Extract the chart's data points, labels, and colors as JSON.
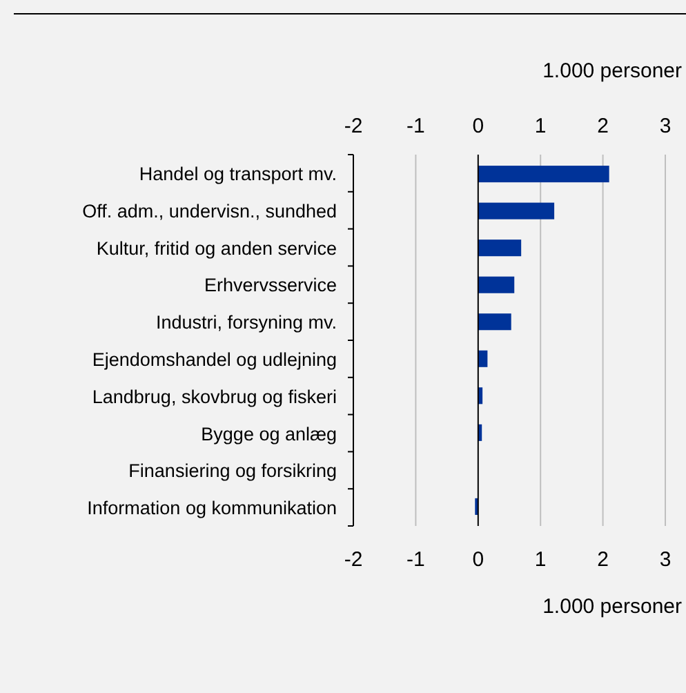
{
  "chart_data": {
    "type": "bar",
    "orientation": "horizontal",
    "categories": [
      "Handel og transport mv.",
      "Off. adm., undervisn., sundhed",
      "Kultur, fritid og anden service",
      "Erhvervsservice",
      "Industri, forsyning mv.",
      "Ejendomshandel og udlejning",
      "Landbrug, skovbrug og fiskeri",
      "Bygge og anlæg",
      "Finansiering og forsikring",
      "Information og kommunikation"
    ],
    "values": [
      2.1,
      1.22,
      0.69,
      0.58,
      0.53,
      0.15,
      0.07,
      0.06,
      0,
      -0.05
    ],
    "color": "#003399",
    "xlim": [
      -2,
      3
    ],
    "xticks": [
      -2,
      -1,
      0,
      1,
      2,
      3
    ],
    "xlabel": "1.000 personer",
    "x2lim": [
      -2,
      3
    ],
    "x2ticks": [
      -2,
      -1,
      0,
      1,
      2,
      3
    ],
    "x2label": "1.000 personer",
    "grid": "x"
  }
}
